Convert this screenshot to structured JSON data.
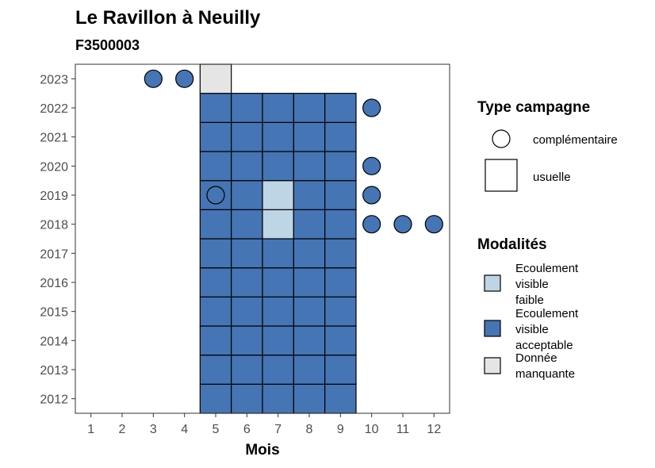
{
  "chart_data": {
    "type": "heatmap",
    "title": "Le Ravillon à Neuilly",
    "subtitle": "F3500003",
    "xlabel": "Mois",
    "ylabel": "",
    "x_ticks": [
      "1",
      "2",
      "3",
      "4",
      "5",
      "6",
      "7",
      "8",
      "9",
      "10",
      "11",
      "12"
    ],
    "y_ticks": [
      "2012",
      "2013",
      "2014",
      "2015",
      "2016",
      "2017",
      "2018",
      "2019",
      "2020",
      "2021",
      "2022",
      "2023"
    ],
    "xlim": [
      0.5,
      12.5
    ],
    "ylim": [
      2011.5,
      2023.5
    ],
    "grid": false,
    "legend_position": "right",
    "colors": {
      "faible": "#bdd5e5",
      "acceptable": "#4575b4",
      "manquante": "#e5e5e5"
    },
    "legend_type_campagne": {
      "title": "Type campagne",
      "items": [
        {
          "shape": "circle",
          "label": "complémentaire"
        },
        {
          "shape": "square",
          "label": "usuelle"
        }
      ]
    },
    "legend_modalites": {
      "title": "Modalités",
      "items": [
        {
          "key": "faible",
          "lines": [
            "Ecoulement",
            "visible",
            "faible"
          ]
        },
        {
          "key": "acceptable",
          "lines": [
            "Ecoulement",
            "visible",
            "acceptable"
          ]
        },
        {
          "key": "manquante",
          "lines": [
            "Donnée",
            "manquante"
          ]
        }
      ]
    },
    "usuelle_cells": [
      {
        "year": 2012,
        "month": 5,
        "mod": "acceptable"
      },
      {
        "year": 2012,
        "month": 6,
        "mod": "acceptable"
      },
      {
        "year": 2012,
        "month": 7,
        "mod": "acceptable"
      },
      {
        "year": 2012,
        "month": 8,
        "mod": "acceptable"
      },
      {
        "year": 2012,
        "month": 9,
        "mod": "acceptable"
      },
      {
        "year": 2013,
        "month": 5,
        "mod": "acceptable"
      },
      {
        "year": 2013,
        "month": 6,
        "mod": "acceptable"
      },
      {
        "year": 2013,
        "month": 7,
        "mod": "acceptable"
      },
      {
        "year": 2013,
        "month": 8,
        "mod": "acceptable"
      },
      {
        "year": 2013,
        "month": 9,
        "mod": "acceptable"
      },
      {
        "year": 2014,
        "month": 5,
        "mod": "acceptable"
      },
      {
        "year": 2014,
        "month": 6,
        "mod": "acceptable"
      },
      {
        "year": 2014,
        "month": 7,
        "mod": "acceptable"
      },
      {
        "year": 2014,
        "month": 8,
        "mod": "acceptable"
      },
      {
        "year": 2014,
        "month": 9,
        "mod": "acceptable"
      },
      {
        "year": 2015,
        "month": 5,
        "mod": "acceptable"
      },
      {
        "year": 2015,
        "month": 6,
        "mod": "acceptable"
      },
      {
        "year": 2015,
        "month": 7,
        "mod": "acceptable"
      },
      {
        "year": 2015,
        "month": 8,
        "mod": "acceptable"
      },
      {
        "year": 2015,
        "month": 9,
        "mod": "acceptable"
      },
      {
        "year": 2016,
        "month": 5,
        "mod": "acceptable"
      },
      {
        "year": 2016,
        "month": 6,
        "mod": "acceptable"
      },
      {
        "year": 2016,
        "month": 7,
        "mod": "acceptable"
      },
      {
        "year": 2016,
        "month": 8,
        "mod": "acceptable"
      },
      {
        "year": 2016,
        "month": 9,
        "mod": "acceptable"
      },
      {
        "year": 2017,
        "month": 5,
        "mod": "acceptable"
      },
      {
        "year": 2017,
        "month": 6,
        "mod": "acceptable"
      },
      {
        "year": 2017,
        "month": 7,
        "mod": "acceptable"
      },
      {
        "year": 2017,
        "month": 8,
        "mod": "acceptable"
      },
      {
        "year": 2017,
        "month": 9,
        "mod": "acceptable"
      },
      {
        "year": 2018,
        "month": 5,
        "mod": "acceptable"
      },
      {
        "year": 2018,
        "month": 6,
        "mod": "acceptable"
      },
      {
        "year": 2018,
        "month": 7,
        "mod": "faible"
      },
      {
        "year": 2018,
        "month": 8,
        "mod": "acceptable"
      },
      {
        "year": 2018,
        "month": 9,
        "mod": "acceptable"
      },
      {
        "year": 2019,
        "month": 5,
        "mod": "acceptable"
      },
      {
        "year": 2019,
        "month": 6,
        "mod": "acceptable"
      },
      {
        "year": 2019,
        "month": 7,
        "mod": "faible"
      },
      {
        "year": 2019,
        "month": 8,
        "mod": "acceptable"
      },
      {
        "year": 2019,
        "month": 9,
        "mod": "acceptable"
      },
      {
        "year": 2020,
        "month": 5,
        "mod": "acceptable"
      },
      {
        "year": 2020,
        "month": 6,
        "mod": "acceptable"
      },
      {
        "year": 2020,
        "month": 7,
        "mod": "acceptable"
      },
      {
        "year": 2020,
        "month": 8,
        "mod": "acceptable"
      },
      {
        "year": 2020,
        "month": 9,
        "mod": "acceptable"
      },
      {
        "year": 2021,
        "month": 5,
        "mod": "acceptable"
      },
      {
        "year": 2021,
        "month": 6,
        "mod": "acceptable"
      },
      {
        "year": 2021,
        "month": 7,
        "mod": "acceptable"
      },
      {
        "year": 2021,
        "month": 8,
        "mod": "acceptable"
      },
      {
        "year": 2021,
        "month": 9,
        "mod": "acceptable"
      },
      {
        "year": 2022,
        "month": 5,
        "mod": "acceptable"
      },
      {
        "year": 2022,
        "month": 6,
        "mod": "acceptable"
      },
      {
        "year": 2022,
        "month": 7,
        "mod": "acceptable"
      },
      {
        "year": 2022,
        "month": 8,
        "mod": "acceptable"
      },
      {
        "year": 2022,
        "month": 9,
        "mod": "acceptable"
      },
      {
        "year": 2023,
        "month": 5,
        "mod": "manquante"
      }
    ],
    "complementaire_points": [
      {
        "year": 2023,
        "month": 3,
        "mod": "acceptable"
      },
      {
        "year": 2023,
        "month": 4,
        "mod": "acceptable"
      },
      {
        "year": 2022,
        "month": 10,
        "mod": "acceptable"
      },
      {
        "year": 2020,
        "month": 10,
        "mod": "acceptable"
      },
      {
        "year": 2019,
        "month": 5,
        "mod": "acceptable"
      },
      {
        "year": 2019,
        "month": 10,
        "mod": "acceptable"
      },
      {
        "year": 2018,
        "month": 10,
        "mod": "acceptable"
      },
      {
        "year": 2018,
        "month": 11,
        "mod": "acceptable"
      },
      {
        "year": 2018,
        "month": 12,
        "mod": "acceptable"
      }
    ]
  }
}
